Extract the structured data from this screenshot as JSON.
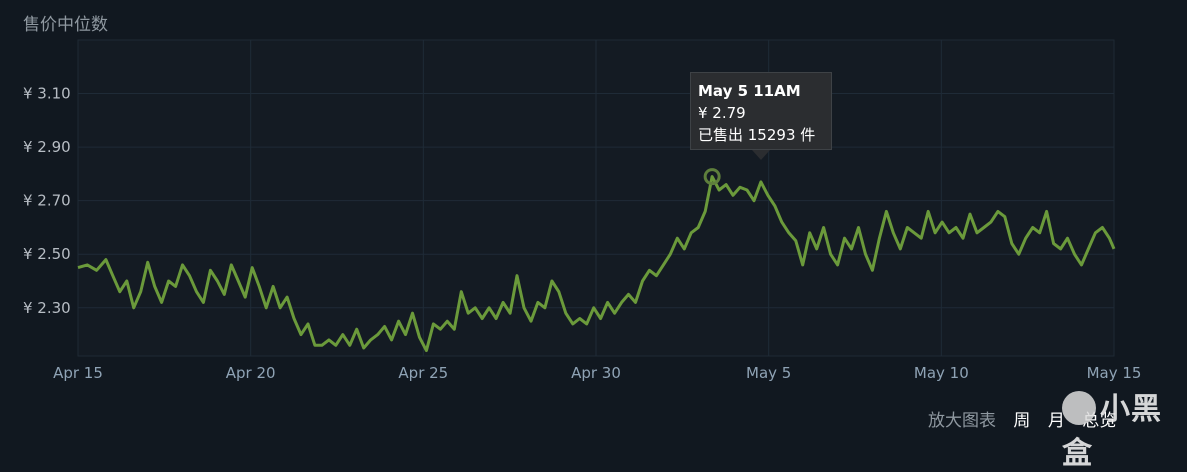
{
  "chart_data": {
    "type": "line",
    "title": "售价中位数",
    "xlabel": "",
    "ylabel": "",
    "x_range": [
      "Apr 15",
      "May 15"
    ],
    "ylim": [
      2.12,
      3.3
    ],
    "y_ticks": [
      "¥ 3.10",
      "¥ 2.90",
      "¥ 2.70",
      "¥ 2.50",
      "¥ 2.30"
    ],
    "y_tick_values": [
      3.1,
      2.9,
      2.7,
      2.5,
      2.3
    ],
    "x_ticks": [
      "Apr 15",
      "Apr 20",
      "Apr 25",
      "Apr 30",
      "May 5",
      "May 10",
      "May 15"
    ],
    "x_tick_days": [
      0,
      5,
      10,
      15,
      20,
      25,
      30
    ],
    "grid": true,
    "line_color": "#6b9a3b",
    "series": [
      {
        "points": [
          [
            0.0,
            2.45
          ],
          [
            0.4,
            2.46
          ],
          [
            0.8,
            2.44
          ],
          [
            1.2,
            2.48
          ],
          [
            1.5,
            2.42
          ],
          [
            1.8,
            2.36
          ],
          [
            2.1,
            2.4
          ],
          [
            2.4,
            2.3
          ],
          [
            2.7,
            2.36
          ],
          [
            3.0,
            2.47
          ],
          [
            3.3,
            2.38
          ],
          [
            3.6,
            2.32
          ],
          [
            3.9,
            2.4
          ],
          [
            4.2,
            2.38
          ],
          [
            4.5,
            2.46
          ],
          [
            4.8,
            2.42
          ],
          [
            5.1,
            2.36
          ],
          [
            5.4,
            2.32
          ],
          [
            5.7,
            2.44
          ],
          [
            6.0,
            2.4
          ],
          [
            6.3,
            2.35
          ],
          [
            6.6,
            2.46
          ],
          [
            6.9,
            2.4
          ],
          [
            7.2,
            2.34
          ],
          [
            7.5,
            2.45
          ],
          [
            7.8,
            2.38
          ],
          [
            8.1,
            2.3
          ],
          [
            8.4,
            2.38
          ],
          [
            8.7,
            2.3
          ],
          [
            9.0,
            2.34
          ],
          [
            9.3,
            2.26
          ],
          [
            9.6,
            2.2
          ],
          [
            9.9,
            2.24
          ],
          [
            10.2,
            2.16
          ],
          [
            10.5,
            2.16
          ],
          [
            10.8,
            2.18
          ],
          [
            11.1,
            2.16
          ],
          [
            11.4,
            2.2
          ],
          [
            11.7,
            2.16
          ],
          [
            12.0,
            2.22
          ],
          [
            12.3,
            2.15
          ],
          [
            12.6,
            2.18
          ],
          [
            12.9,
            2.2
          ],
          [
            13.2,
            2.23
          ],
          [
            13.5,
            2.18
          ],
          [
            13.8,
            2.25
          ],
          [
            14.1,
            2.2
          ],
          [
            14.4,
            2.28
          ],
          [
            14.7,
            2.19
          ],
          [
            15.0,
            2.14
          ],
          [
            15.3,
            2.24
          ],
          [
            15.6,
            2.22
          ],
          [
            15.9,
            2.25
          ],
          [
            16.2,
            2.22
          ],
          [
            16.5,
            2.36
          ],
          [
            16.8,
            2.28
          ],
          [
            17.1,
            2.3
          ],
          [
            17.4,
            2.26
          ],
          [
            17.7,
            2.3
          ],
          [
            18.0,
            2.26
          ],
          [
            18.3,
            2.32
          ],
          [
            18.6,
            2.28
          ],
          [
            18.9,
            2.42
          ],
          [
            19.2,
            2.3
          ],
          [
            19.5,
            2.25
          ],
          [
            19.8,
            2.32
          ],
          [
            20.1,
            2.3
          ],
          [
            20.4,
            2.4
          ],
          [
            20.7,
            2.36
          ],
          [
            21.0,
            2.28
          ],
          [
            21.3,
            2.24
          ],
          [
            21.6,
            2.26
          ],
          [
            21.9,
            2.24
          ],
          [
            22.2,
            2.3
          ],
          [
            22.5,
            2.26
          ],
          [
            22.8,
            2.32
          ],
          [
            23.1,
            2.28
          ],
          [
            23.4,
            2.32
          ],
          [
            23.7,
            2.35
          ],
          [
            24.0,
            2.32
          ],
          [
            24.3,
            2.4
          ],
          [
            24.6,
            2.44
          ],
          [
            24.9,
            2.42
          ],
          [
            25.2,
            2.46
          ],
          [
            25.5,
            2.5
          ],
          [
            25.8,
            2.56
          ],
          [
            26.1,
            2.52
          ],
          [
            26.4,
            2.58
          ],
          [
            26.7,
            2.6
          ],
          [
            27.0,
            2.66
          ],
          [
            27.3,
            2.79
          ],
          [
            27.6,
            2.74
          ],
          [
            27.9,
            2.76
          ],
          [
            28.2,
            2.72
          ],
          [
            28.5,
            2.75
          ],
          [
            28.8,
            2.74
          ],
          [
            29.1,
            2.7
          ],
          [
            29.4,
            2.77
          ],
          [
            29.7,
            2.72
          ],
          [
            30.0,
            2.68
          ],
          [
            30.3,
            2.62
          ],
          [
            30.6,
            2.58
          ],
          [
            30.9,
            2.55
          ],
          [
            31.2,
            2.46
          ],
          [
            31.5,
            2.58
          ],
          [
            31.8,
            2.52
          ],
          [
            32.1,
            2.6
          ],
          [
            32.4,
            2.5
          ],
          [
            32.7,
            2.46
          ],
          [
            33.0,
            2.56
          ],
          [
            33.3,
            2.52
          ],
          [
            33.6,
            2.6
          ],
          [
            33.9,
            2.5
          ],
          [
            34.2,
            2.44
          ],
          [
            34.5,
            2.56
          ],
          [
            34.8,
            2.66
          ],
          [
            35.1,
            2.58
          ],
          [
            35.4,
            2.52
          ],
          [
            35.7,
            2.6
          ],
          [
            36.0,
            2.58
          ],
          [
            36.3,
            2.56
          ],
          [
            36.6,
            2.66
          ],
          [
            36.9,
            2.58
          ],
          [
            37.2,
            2.62
          ],
          [
            37.5,
            2.58
          ],
          [
            37.8,
            2.6
          ],
          [
            38.1,
            2.56
          ],
          [
            38.4,
            2.65
          ],
          [
            38.7,
            2.58
          ],
          [
            39.0,
            2.6
          ],
          [
            39.3,
            2.62
          ],
          [
            39.6,
            2.66
          ],
          [
            39.9,
            2.64
          ],
          [
            40.2,
            2.54
          ],
          [
            40.5,
            2.5
          ],
          [
            40.8,
            2.56
          ],
          [
            41.1,
            2.6
          ],
          [
            41.4,
            2.58
          ],
          [
            41.7,
            2.66
          ],
          [
            42.0,
            2.54
          ],
          [
            42.3,
            2.52
          ],
          [
            42.6,
            2.56
          ],
          [
            42.9,
            2.5
          ],
          [
            43.2,
            2.46
          ],
          [
            43.5,
            2.52
          ],
          [
            43.8,
            2.58
          ],
          [
            44.1,
            2.6
          ],
          [
            44.4,
            2.56
          ],
          [
            44.6,
            2.52
          ]
        ]
      }
    ],
    "tooltip": {
      "title": "May 5 11AM",
      "price": "¥ 2.79",
      "sold": "已售出 15293 件",
      "point": [
        27.3,
        2.79
      ]
    }
  },
  "controls": {
    "zoom_label": "放大图表",
    "week": "周",
    "month": "月",
    "overview": "总览"
  },
  "watermark": "小黑盒"
}
